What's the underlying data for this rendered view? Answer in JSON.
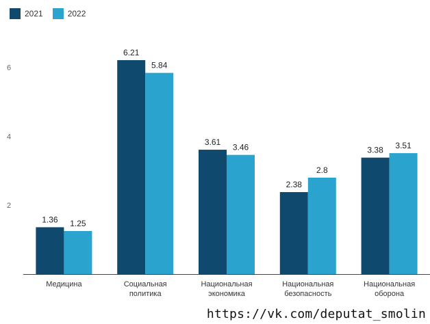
{
  "chart_data": {
    "type": "bar",
    "title": "",
    "categories": [
      [
        "Медицина"
      ],
      [
        "Социальная",
        "политика"
      ],
      [
        "Национальная",
        "экономика"
      ],
      [
        "Национальная",
        "безопасность"
      ],
      [
        "Национальная",
        "оборона"
      ]
    ],
    "series": [
      {
        "name": "2021",
        "color": "#0f4a6e",
        "values": [
          1.36,
          6.21,
          3.61,
          2.38,
          3.38
        ]
      },
      {
        "name": "2022",
        "color": "#2aa3cf",
        "values": [
          1.25,
          5.84,
          3.46,
          2.8,
          3.51
        ]
      }
    ],
    "value_labels": [
      [
        "1.36",
        "6.21",
        "3.61",
        "2.38",
        "3.38"
      ],
      [
        "1.25",
        "5.84",
        "3.46",
        "2.8",
        "3.51"
      ]
    ],
    "yticks": [
      2,
      4,
      6
    ],
    "ylim": [
      0,
      7.3
    ],
    "grid": false,
    "legend_position": "top-left",
    "xlabel": "",
    "ylabel": ""
  },
  "source_url": "https://vk.com/deputat_smolin"
}
